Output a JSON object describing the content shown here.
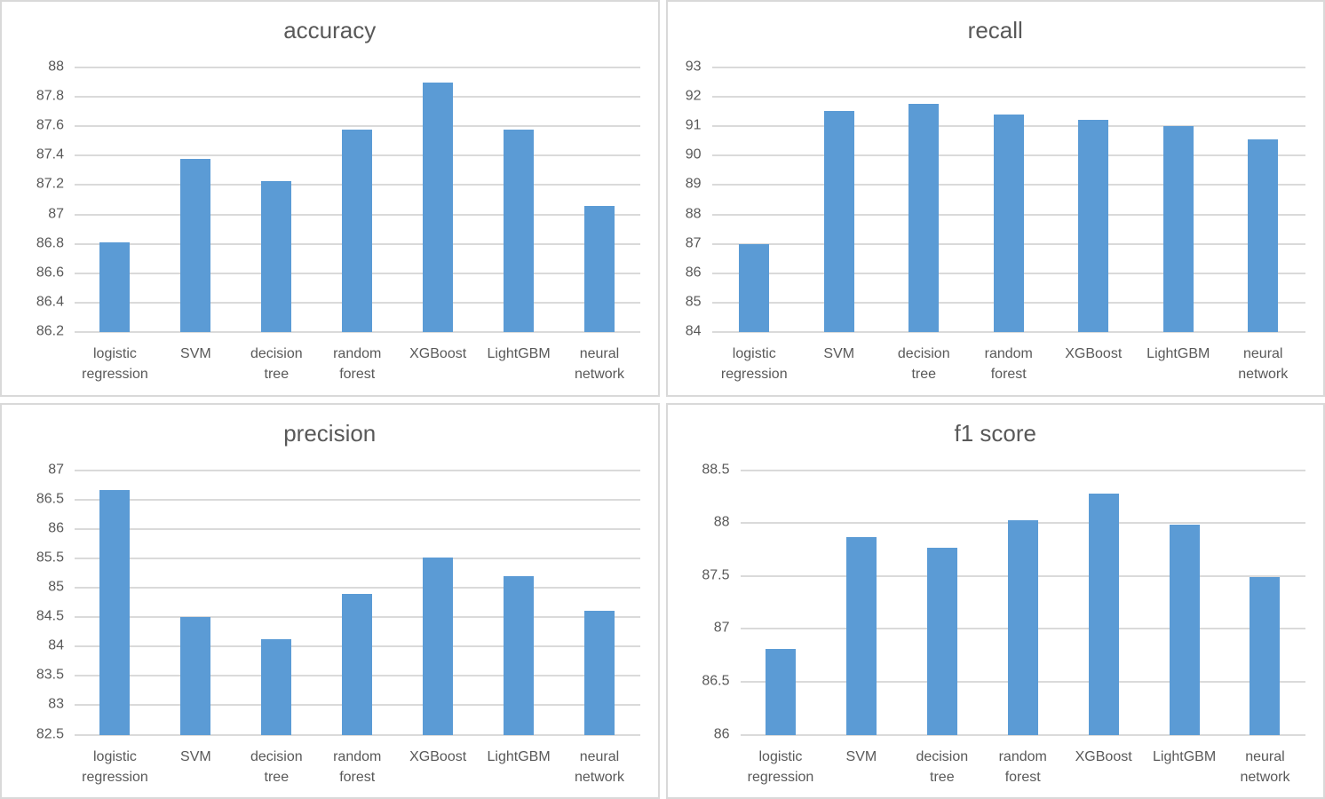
{
  "colors": {
    "bar": "#5B9BD5",
    "gridline": "#DADADA",
    "text": "#595959",
    "panel_border": "#D9D9D9",
    "background": "#FFFFFF"
  },
  "chart_data": [
    {
      "type": "bar",
      "title": "accuracy",
      "categories": [
        "logistic regression",
        "SVM",
        "decision tree",
        "random forest",
        "XGBoost",
        "LightGBM",
        "neural network"
      ],
      "values": [
        86.81,
        87.38,
        87.23,
        87.58,
        87.9,
        87.58,
        87.06
      ],
      "xlabel": "",
      "ylabel": "",
      "ylim": [
        86.2,
        88
      ],
      "ytick_step": 0.2,
      "yticks": [
        "88",
        "87.8",
        "87.6",
        "87.4",
        "87.2",
        "87",
        "86.8",
        "86.6",
        "86.4",
        "86.2"
      ],
      "grid": true,
      "legend": false
    },
    {
      "type": "bar",
      "title": "recall",
      "categories": [
        "logistic regression",
        "SVM",
        "decision tree",
        "random forest",
        "XGBoost",
        "LightGBM",
        "neural network"
      ],
      "values": [
        87,
        91.52,
        91.77,
        91.4,
        91.22,
        91,
        90.55
      ],
      "xlabel": "",
      "ylabel": "",
      "ylim": [
        84,
        93
      ],
      "ytick_step": 1,
      "yticks": [
        "93",
        "92",
        "91",
        "90",
        "89",
        "88",
        "87",
        "86",
        "85",
        "84"
      ],
      "grid": true,
      "legend": false
    },
    {
      "type": "bar",
      "title": "precision",
      "categories": [
        "logistic regression",
        "SVM",
        "decision tree",
        "random forest",
        "XGBoost",
        "LightGBM",
        "neural network"
      ],
      "values": [
        86.66,
        84.5,
        84.13,
        84.9,
        85.51,
        85.19,
        84.6
      ],
      "xlabel": "",
      "ylabel": "",
      "ylim": [
        82.5,
        87
      ],
      "ytick_step": 0.5,
      "yticks": [
        "87",
        "86.5",
        "86",
        "85.5",
        "85",
        "84.5",
        "84",
        "83.5",
        "83",
        "82.5"
      ],
      "grid": true,
      "legend": false
    },
    {
      "type": "bar",
      "title": "f1 score",
      "categories": [
        "logistic regression",
        "SVM",
        "decision tree",
        "random forest",
        "XGBoost",
        "LightGBM",
        "neural network"
      ],
      "values": [
        86.81,
        87.87,
        87.77,
        88.03,
        88.28,
        87.98,
        87.49
      ],
      "xlabel": "",
      "ylabel": "",
      "ylim": [
        86,
        88.5
      ],
      "ytick_step": 0.5,
      "yticks": [
        "88.5",
        "88",
        "87.5",
        "87",
        "86.5",
        "86"
      ],
      "grid": true,
      "legend": false
    }
  ]
}
